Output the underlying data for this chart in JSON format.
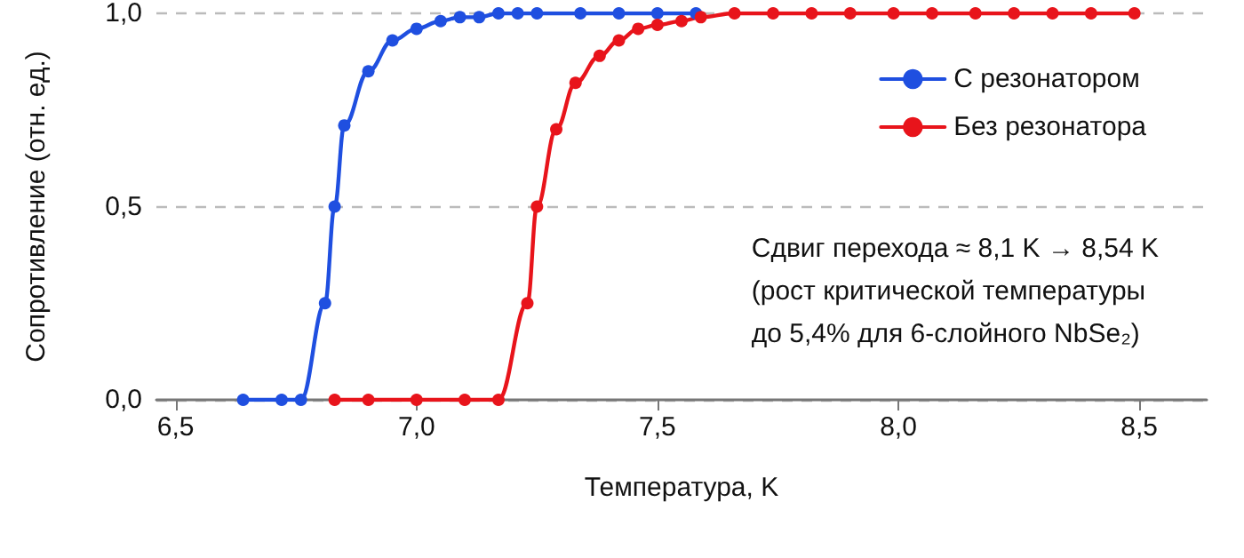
{
  "chart_data": {
    "type": "line",
    "xlabel": "Температура, K",
    "ylabel": "Сопротивление (отн. ед.)",
    "xlim": [
      6.46,
      8.64
    ],
    "xticks": [
      {
        "value": 6.5,
        "label": "6,5"
      },
      {
        "value": 7.0,
        "label": "7,0"
      },
      {
        "value": 7.5,
        "label": "7,5"
      },
      {
        "value": 8.0,
        "label": "8,0"
      },
      {
        "value": 8.5,
        "label": "8,5"
      }
    ],
    "ylim": [
      0,
      1
    ],
    "yticks": [
      {
        "value": 0,
        "label": "0,0"
      },
      {
        "value": 0.5,
        "label": "0,5"
      },
      {
        "value": 1,
        "label": "1,0"
      }
    ],
    "grid": "y",
    "legend": "top right",
    "marker": "circle",
    "line_style": "solid",
    "annotations": [
      "Сдвиг перехода ≈ 8,1 K → 8,54 K\n(рост критической температуры\nдо 5,4% для 6-слойного NbSe₂)"
    ],
    "series": [
      {
        "name": "С резонатором",
        "color": "#1f4fe0",
        "x": [
          6.64,
          6.72,
          6.76,
          6.81,
          6.83,
          6.85,
          6.9,
          6.95,
          7.0,
          7.05,
          7.09,
          7.13,
          7.17,
          7.21,
          7.25,
          7.34,
          7.42,
          7.5,
          7.58
        ],
        "values": [
          0,
          0,
          0,
          0.25,
          0.5,
          0.71,
          0.85,
          0.93,
          0.96,
          0.98,
          0.99,
          0.99,
          1,
          1,
          1,
          1,
          1,
          1,
          1
        ]
      },
      {
        "name": "Без резонатора",
        "color": "#e8141b",
        "x": [
          6.83,
          6.9,
          7.0,
          7.1,
          7.17,
          7.23,
          7.25,
          7.29,
          7.33,
          7.38,
          7.42,
          7.46,
          7.5,
          7.55,
          7.59,
          7.66,
          7.74,
          7.82,
          7.9,
          7.99,
          8.07,
          8.16,
          8.24,
          8.32,
          8.4,
          8.49
        ],
        "values": [
          0,
          0,
          0,
          0,
          0,
          0.25,
          0.5,
          0.7,
          0.82,
          0.89,
          0.93,
          0.96,
          0.97,
          0.98,
          0.99,
          1,
          1,
          1,
          1,
          1,
          1,
          1,
          1,
          1,
          1,
          1
        ]
      }
    ]
  }
}
